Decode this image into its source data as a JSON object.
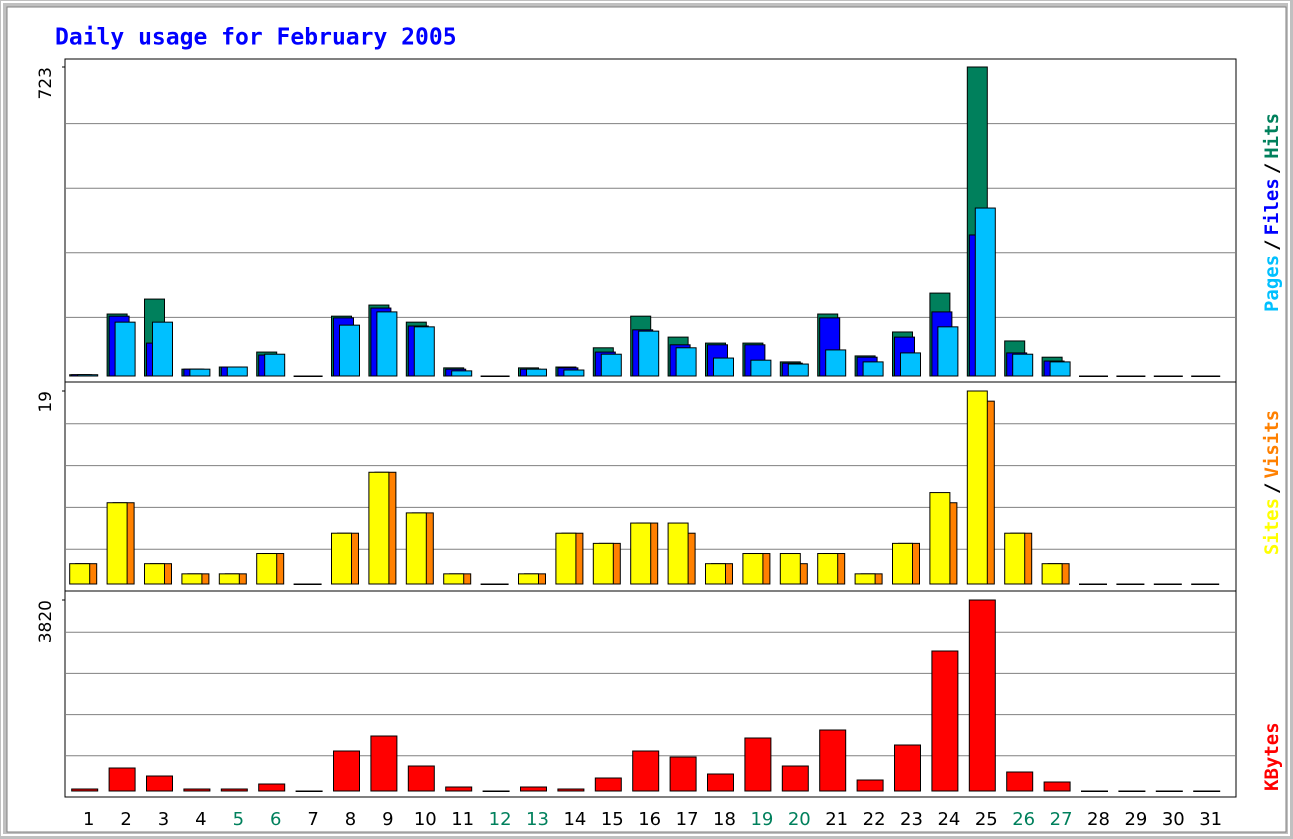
{
  "title": "Daily usage for February 2005",
  "legend_separator": "/",
  "chart_data": [
    {
      "type": "bar",
      "ylim": [
        0,
        723
      ],
      "yticks": [
        723
      ],
      "series": [
        {
          "name": "Hits",
          "color": "#00805c",
          "values": [
            3,
            145,
            180,
            16,
            21,
            56,
            0,
            140,
            166,
            126,
            19,
            0,
            19,
            21,
            66,
            140,
            91,
            77,
            77,
            33,
            145,
            47,
            103,
            194,
            723,
            82,
            44,
            0,
            0,
            0,
            0
          ]
        },
        {
          "name": "Files",
          "color": "#0000ff",
          "values": [
            3,
            140,
            77,
            16,
            21,
            49,
            0,
            136,
            159,
            117,
            16,
            0,
            16,
            19,
            56,
            108,
            73,
            73,
            73,
            30,
            136,
            44,
            91,
            150,
            330,
            54,
            35,
            0,
            0,
            0,
            0
          ]
        },
        {
          "name": "Pages",
          "color": "#00c0ff",
          "values": [
            3,
            126,
            126,
            16,
            21,
            51,
            0,
            119,
            150,
            115,
            12,
            0,
            16,
            14,
            51,
            105,
            66,
            42,
            37,
            28,
            61,
            33,
            54,
            115,
            393,
            51,
            33,
            0,
            0,
            0,
            0
          ]
        }
      ]
    },
    {
      "type": "bar",
      "ylim": [
        0,
        19
      ],
      "yticks": [
        19
      ],
      "series": [
        {
          "name": "Visits",
          "color": "#ff8000",
          "values": [
            2,
            8,
            2,
            1,
            1,
            3,
            0,
            5,
            11,
            7,
            1,
            0,
            1,
            5,
            4,
            6,
            5,
            2,
            3,
            2,
            3,
            1,
            4,
            8,
            18,
            5,
            2,
            0,
            0,
            0,
            0
          ]
        },
        {
          "name": "Sites",
          "color": "#ffff00",
          "values": [
            2,
            8,
            2,
            1,
            1,
            3,
            0,
            5,
            11,
            7,
            1,
            0,
            1,
            5,
            4,
            6,
            6,
            2,
            3,
            3,
            3,
            1,
            4,
            9,
            19,
            5,
            2,
            0,
            0,
            0,
            0
          ]
        }
      ]
    },
    {
      "type": "bar",
      "ylim": [
        0,
        3820
      ],
      "yticks": [
        3820
      ],
      "series": [
        {
          "name": "KBytes",
          "color": "#ff0000",
          "values": [
            40,
            460,
            300,
            40,
            40,
            140,
            0,
            800,
            1100,
            500,
            80,
            0,
            80,
            40,
            260,
            800,
            680,
            340,
            1060,
            500,
            1220,
            220,
            920,
            2800,
            3820,
            380,
            180,
            0,
            0,
            0,
            0
          ]
        }
      ],
      "categories": [
        "1",
        "2",
        "3",
        "4",
        "5",
        "6",
        "7",
        "8",
        "9",
        "10",
        "11",
        "12",
        "13",
        "14",
        "15",
        "16",
        "17",
        "18",
        "19",
        "20",
        "21",
        "22",
        "23",
        "24",
        "25",
        "26",
        "27",
        "28",
        "29",
        "30",
        "31"
      ],
      "label_colors": [
        "#000",
        "#000",
        "#000",
        "#000",
        "#00805c",
        "#00805c",
        "#000",
        "#000",
        "#000",
        "#000",
        "#000",
        "#00805c",
        "#00805c",
        "#000",
        "#000",
        "#000",
        "#000",
        "#000",
        "#00805c",
        "#00805c",
        "#000",
        "#000",
        "#000",
        "#000",
        "#000",
        "#00805c",
        "#00805c",
        "#000",
        "#000",
        "#000",
        "#000"
      ]
    }
  ]
}
